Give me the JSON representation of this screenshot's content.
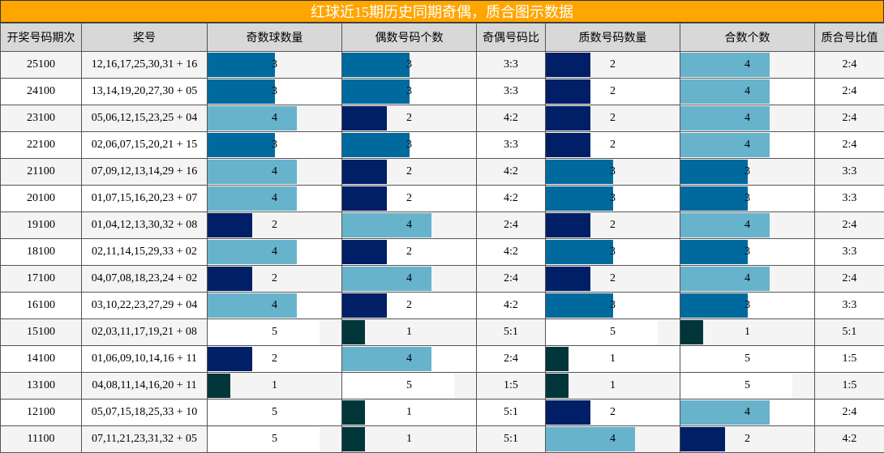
{
  "title": "红球近15期历史同期奇偶，质合图示数据",
  "headers": [
    "开奖号码期次",
    "奖号",
    "奇数球数量",
    "偶数号码个数",
    "奇偶号码比",
    "质数号码数量",
    "合数个数",
    "质合号比值"
  ],
  "colors": {
    "1": "#00363a",
    "2": "#001f66",
    "3": "#006a9e",
    "4": "#67b3cc",
    "5": "#ffffff"
  },
  "chart_data": {
    "type": "table",
    "max_value": 6,
    "rows": [
      {
        "issue": "25100",
        "numbers": "12,16,17,25,30,31 + 16",
        "odd": 3,
        "even": 3,
        "odd_even": "3:3",
        "prime": 2,
        "composite": 4,
        "prime_composite": "2:4"
      },
      {
        "issue": "24100",
        "numbers": "13,14,19,20,27,30 + 05",
        "odd": 3,
        "even": 3,
        "odd_even": "3:3",
        "prime": 2,
        "composite": 4,
        "prime_composite": "2:4"
      },
      {
        "issue": "23100",
        "numbers": "05,06,12,15,23,25 + 04",
        "odd": 4,
        "even": 2,
        "odd_even": "4:2",
        "prime": 2,
        "composite": 4,
        "prime_composite": "2:4"
      },
      {
        "issue": "22100",
        "numbers": "02,06,07,15,20,21 + 15",
        "odd": 3,
        "even": 3,
        "odd_even": "3:3",
        "prime": 2,
        "composite": 4,
        "prime_composite": "2:4"
      },
      {
        "issue": "21100",
        "numbers": "07,09,12,13,14,29 + 16",
        "odd": 4,
        "even": 2,
        "odd_even": "4:2",
        "prime": 3,
        "composite": 3,
        "prime_composite": "3:3"
      },
      {
        "issue": "20100",
        "numbers": "01,07,15,16,20,23 + 07",
        "odd": 4,
        "even": 2,
        "odd_even": "4:2",
        "prime": 3,
        "composite": 3,
        "prime_composite": "3:3"
      },
      {
        "issue": "19100",
        "numbers": "01,04,12,13,30,32 + 08",
        "odd": 2,
        "even": 4,
        "odd_even": "2:4",
        "prime": 2,
        "composite": 4,
        "prime_composite": "2:4"
      },
      {
        "issue": "18100",
        "numbers": "02,11,14,15,29,33 + 02",
        "odd": 4,
        "even": 2,
        "odd_even": "4:2",
        "prime": 3,
        "composite": 3,
        "prime_composite": "3:3"
      },
      {
        "issue": "17100",
        "numbers": "04,07,08,18,23,24 + 02",
        "odd": 2,
        "even": 4,
        "odd_even": "2:4",
        "prime": 2,
        "composite": 4,
        "prime_composite": "2:4"
      },
      {
        "issue": "16100",
        "numbers": "03,10,22,23,27,29 + 04",
        "odd": 4,
        "even": 2,
        "odd_even": "4:2",
        "prime": 3,
        "composite": 3,
        "prime_composite": "3:3"
      },
      {
        "issue": "15100",
        "numbers": "02,03,11,17,19,21 + 08",
        "odd": 5,
        "even": 1,
        "odd_even": "5:1",
        "prime": 5,
        "composite": 1,
        "prime_composite": "5:1"
      },
      {
        "issue": "14100",
        "numbers": "01,06,09,10,14,16 + 11",
        "odd": 2,
        "even": 4,
        "odd_even": "2:4",
        "prime": 1,
        "composite": 5,
        "prime_composite": "1:5"
      },
      {
        "issue": "13100",
        "numbers": "04,08,11,14,16,20 + 11",
        "odd": 1,
        "even": 5,
        "odd_even": "1:5",
        "prime": 1,
        "composite": 5,
        "prime_composite": "1:5"
      },
      {
        "issue": "12100",
        "numbers": "05,07,15,18,25,33 + 10",
        "odd": 5,
        "even": 1,
        "odd_even": "5:1",
        "prime": 2,
        "composite": 4,
        "prime_composite": "2:4"
      },
      {
        "issue": "11100",
        "numbers": "07,11,21,23,31,32 + 05",
        "odd": 5,
        "even": 1,
        "odd_even": "5:1",
        "prime": 4,
        "composite": 2,
        "prime_composite": "4:2"
      }
    ]
  }
}
